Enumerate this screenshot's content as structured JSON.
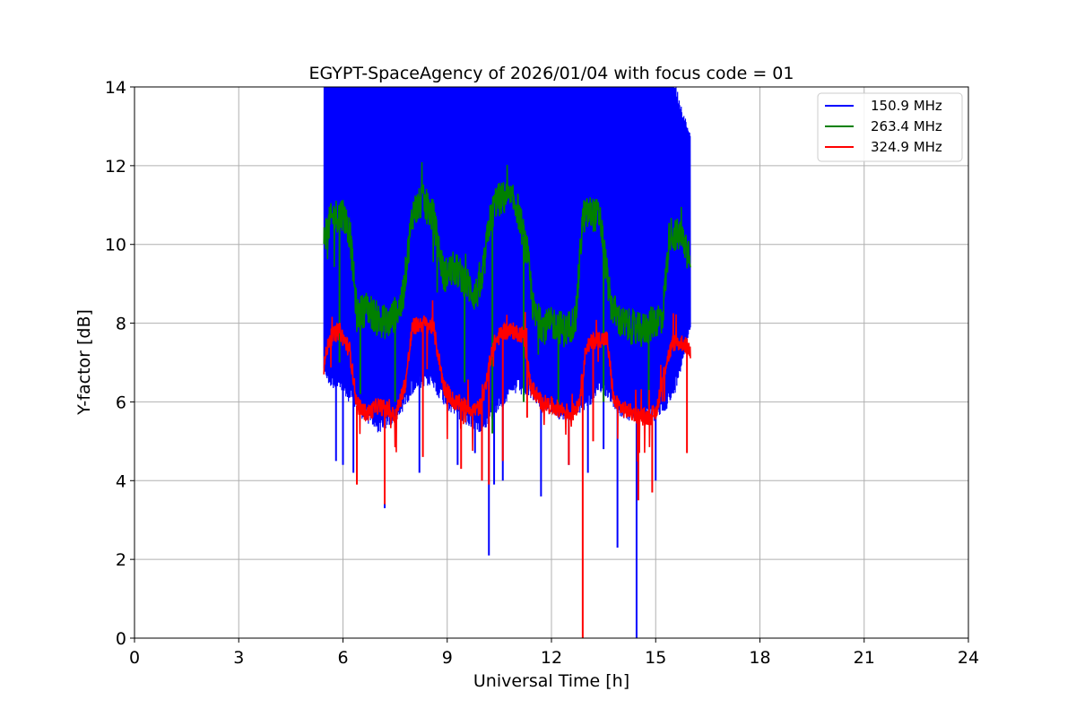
{
  "chart_data": {
    "type": "line",
    "title": "EGYPT-SpaceAgency of 2026/01/04 with focus code = 01",
    "xlabel": "Universal Time [h]",
    "ylabel": "Y-factor [dB]",
    "xlim": [
      0,
      24
    ],
    "ylim": [
      0,
      14
    ],
    "xticks": [
      0,
      3,
      6,
      9,
      12,
      15,
      18,
      21,
      24
    ],
    "yticks": [
      0,
      2,
      4,
      6,
      8,
      10,
      12,
      14
    ],
    "grid": true,
    "legend_position": "top-right",
    "series": [
      {
        "name": "150.9 MHz",
        "color": "#0000ff",
        "style": "dense-noise-band",
        "x": [
          5.45,
          5.6,
          6.0,
          6.5,
          7.0,
          7.5,
          8.0,
          8.5,
          9.0,
          9.5,
          10.0,
          10.5,
          11.0,
          11.5,
          12.0,
          12.5,
          13.0,
          13.5,
          14.0,
          14.5,
          15.0,
          15.5,
          16.0
        ],
        "lower": [
          7.1,
          6.8,
          6.6,
          6.0,
          5.6,
          5.8,
          6.6,
          6.8,
          6.2,
          5.8,
          5.6,
          6.2,
          6.6,
          6.4,
          6.0,
          5.9,
          6.2,
          6.6,
          6.0,
          5.8,
          5.9,
          6.4,
          8.2
        ],
        "upper": [
          14,
          14,
          14,
          14,
          14,
          14,
          14,
          14,
          14,
          14,
          14,
          14,
          14,
          14,
          14,
          14,
          14,
          14,
          14,
          14,
          14,
          14,
          12.5
        ],
        "dips": [
          [
            5.8,
            4.5
          ],
          [
            6.0,
            4.4
          ],
          [
            6.3,
            4.2
          ],
          [
            7.2,
            3.3
          ],
          [
            8.2,
            4.2
          ],
          [
            9.3,
            4.4
          ],
          [
            9.8,
            4.7
          ],
          [
            10.2,
            2.1
          ],
          [
            10.35,
            3.9
          ],
          [
            10.6,
            4.0
          ],
          [
            11.7,
            3.6
          ],
          [
            12.5,
            4.4
          ],
          [
            13.05,
            4.2
          ],
          [
            13.5,
            4.8
          ],
          [
            13.9,
            2.3
          ],
          [
            14.45,
            0.0
          ],
          [
            15.0,
            4.0
          ]
        ]
      },
      {
        "name": "263.4 MHz",
        "color": "#008000",
        "style": "noisy-line",
        "x": [
          5.45,
          5.7,
          6.0,
          6.2,
          6.4,
          6.7,
          7.0,
          7.3,
          7.7,
          8.0,
          8.3,
          8.6,
          8.9,
          9.2,
          9.5,
          9.8,
          10.0,
          10.2,
          10.4,
          10.7,
          11.0,
          11.3,
          11.5,
          11.8,
          12.1,
          12.4,
          12.7,
          12.9,
          13.1,
          13.4,
          13.7,
          14.0,
          14.3,
          14.6,
          14.9,
          15.2,
          15.4,
          15.7,
          16.0
        ],
        "y": [
          10.2,
          10.7,
          10.8,
          10.3,
          8.2,
          8.4,
          8.1,
          8.0,
          8.5,
          10.8,
          11.1,
          10.7,
          9.2,
          9.4,
          9.1,
          8.7,
          9.0,
          10.5,
          11.1,
          11.2,
          11.0,
          9.8,
          8.2,
          7.9,
          8.0,
          7.8,
          8.1,
          10.7,
          10.8,
          10.7,
          8.5,
          8.0,
          7.9,
          7.8,
          8.0,
          8.2,
          10.3,
          10.2,
          9.8
        ],
        "dips": [
          [
            5.9,
            7.0
          ],
          [
            6.5,
            6.2
          ],
          [
            7.5,
            6.0
          ],
          [
            9.5,
            6.5
          ],
          [
            10.3,
            5.2
          ],
          [
            11.2,
            6.0
          ],
          [
            12.2,
            5.8
          ],
          [
            13.5,
            6.0
          ],
          [
            14.8,
            5.9
          ]
        ]
      },
      {
        "name": "324.9 MHz",
        "color": "#ff0000",
        "style": "noisy-line",
        "x": [
          5.45,
          5.6,
          5.9,
          6.2,
          6.4,
          6.7,
          7.0,
          7.3,
          7.5,
          7.8,
          8.0,
          8.3,
          8.6,
          8.9,
          9.2,
          9.5,
          9.8,
          10.0,
          10.3,
          10.6,
          10.9,
          11.2,
          11.4,
          11.7,
          12.0,
          12.3,
          12.6,
          12.8,
          13.0,
          13.3,
          13.6,
          13.8,
          14.1,
          14.4,
          14.7,
          15.0,
          15.3,
          15.5,
          15.8,
          16.0
        ],
        "y": [
          6.9,
          7.6,
          7.8,
          7.3,
          5.9,
          5.7,
          5.9,
          5.8,
          5.6,
          6.5,
          7.9,
          8.0,
          7.9,
          6.4,
          6.0,
          5.9,
          5.8,
          5.9,
          7.4,
          7.8,
          7.8,
          7.7,
          6.4,
          6.0,
          5.9,
          5.8,
          5.7,
          6.0,
          7.4,
          7.6,
          7.6,
          6.0,
          5.8,
          5.7,
          5.6,
          5.7,
          7.0,
          7.5,
          7.5,
          7.3
        ],
        "dips": [
          [
            6.4,
            3.9
          ],
          [
            7.2,
            3.4
          ],
          [
            8.3,
            4.6
          ],
          [
            9.4,
            4.3
          ],
          [
            10.0,
            4.0
          ],
          [
            10.2,
            3.9
          ],
          [
            10.6,
            4.5
          ],
          [
            11.3,
            5.6
          ],
          [
            12.5,
            4.4
          ],
          [
            12.9,
            0.0
          ],
          [
            13.2,
            5.0
          ],
          [
            14.5,
            3.5
          ],
          [
            14.9,
            3.7
          ],
          [
            15.9,
            4.7
          ]
        ]
      }
    ]
  }
}
